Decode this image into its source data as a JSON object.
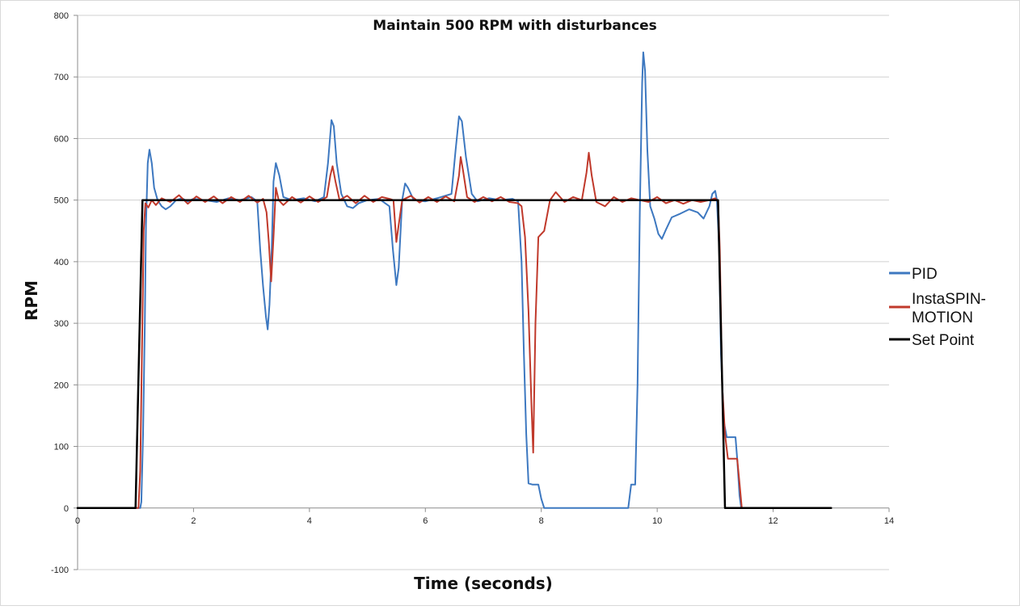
{
  "chart_data": {
    "type": "line",
    "title": "Maintain 500 RPM with disturbances",
    "xlabel": "Time (seconds)",
    "ylabel": "RPM",
    "xlim": [
      0,
      14
    ],
    "ylim": [
      -100,
      800
    ],
    "x_ticks": [
      "0",
      "2",
      "4",
      "6",
      "8",
      "10",
      "12",
      "14"
    ],
    "y_ticks": [
      "800",
      "700",
      "600",
      "500",
      "400",
      "300",
      "200",
      "100",
      "0",
      "-100"
    ],
    "grid": "horizontal",
    "legend_position": "right",
    "legend": [
      {
        "label": "PID",
        "color": "#3d78c0"
      },
      {
        "label_lines": [
          "InstaSPIN-",
          "MOTION"
        ],
        "color": "#c0392b"
      },
      {
        "label": "Set Point",
        "color": "#000000"
      }
    ],
    "series": [
      {
        "name": "PID",
        "color": "#3d78c0",
        "points": [
          [
            0,
            0
          ],
          [
            1.0,
            0
          ],
          [
            1.08,
            0
          ],
          [
            1.1,
            10
          ],
          [
            1.13,
            120
          ],
          [
            1.16,
            300
          ],
          [
            1.18,
            460
          ],
          [
            1.21,
            560
          ],
          [
            1.24,
            582
          ],
          [
            1.28,
            560
          ],
          [
            1.32,
            520
          ],
          [
            1.38,
            500
          ],
          [
            1.45,
            490
          ],
          [
            1.52,
            485
          ],
          [
            1.6,
            490
          ],
          [
            1.7,
            500
          ],
          [
            1.8,
            503
          ],
          [
            1.9,
            498
          ],
          [
            2.0,
            502
          ],
          [
            2.2,
            500
          ],
          [
            2.4,
            497
          ],
          [
            2.6,
            503
          ],
          [
            2.8,
            500
          ],
          [
            3.0,
            505
          ],
          [
            3.1,
            498
          ],
          [
            3.15,
            420
          ],
          [
            3.2,
            360
          ],
          [
            3.25,
            310
          ],
          [
            3.28,
            290
          ],
          [
            3.31,
            330
          ],
          [
            3.35,
            420
          ],
          [
            3.38,
            530
          ],
          [
            3.42,
            560
          ],
          [
            3.48,
            540
          ],
          [
            3.55,
            505
          ],
          [
            3.7,
            500
          ],
          [
            3.9,
            503
          ],
          [
            4.1,
            498
          ],
          [
            4.25,
            505
          ],
          [
            4.32,
            560
          ],
          [
            4.38,
            630
          ],
          [
            4.42,
            620
          ],
          [
            4.47,
            560
          ],
          [
            4.55,
            510
          ],
          [
            4.65,
            490
          ],
          [
            4.75,
            487
          ],
          [
            4.85,
            495
          ],
          [
            5.0,
            500
          ],
          [
            5.2,
            502
          ],
          [
            5.38,
            490
          ],
          [
            5.44,
            420
          ],
          [
            5.5,
            362
          ],
          [
            5.54,
            390
          ],
          [
            5.6,
            500
          ],
          [
            5.65,
            527
          ],
          [
            5.7,
            520
          ],
          [
            5.8,
            500
          ],
          [
            6.0,
            498
          ],
          [
            6.2,
            503
          ],
          [
            6.45,
            510
          ],
          [
            6.52,
            580
          ],
          [
            6.58,
            636
          ],
          [
            6.63,
            628
          ],
          [
            6.7,
            570
          ],
          [
            6.8,
            510
          ],
          [
            6.9,
            498
          ],
          [
            7.1,
            503
          ],
          [
            7.3,
            500
          ],
          [
            7.5,
            502
          ],
          [
            7.6,
            498
          ],
          [
            7.66,
            400
          ],
          [
            7.7,
            250
          ],
          [
            7.74,
            120
          ],
          [
            7.78,
            40
          ],
          [
            7.85,
            38
          ],
          [
            7.95,
            38
          ],
          [
            8.0,
            15
          ],
          [
            8.05,
            0
          ],
          [
            8.2,
            0
          ],
          [
            9.0,
            0
          ],
          [
            9.5,
            0
          ],
          [
            9.55,
            38
          ],
          [
            9.62,
            38
          ],
          [
            9.66,
            200
          ],
          [
            9.7,
            480
          ],
          [
            9.74,
            690
          ],
          [
            9.76,
            740
          ],
          [
            9.79,
            710
          ],
          [
            9.83,
            580
          ],
          [
            9.88,
            490
          ],
          [
            9.95,
            470
          ],
          [
            10.02,
            445
          ],
          [
            10.08,
            437
          ],
          [
            10.15,
            452
          ],
          [
            10.25,
            472
          ],
          [
            10.4,
            478
          ],
          [
            10.55,
            485
          ],
          [
            10.7,
            480
          ],
          [
            10.8,
            470
          ],
          [
            10.9,
            490
          ],
          [
            10.95,
            510
          ],
          [
            11.0,
            515
          ],
          [
            11.03,
            500
          ],
          [
            11.07,
            420
          ],
          [
            11.1,
            250
          ],
          [
            11.15,
            140
          ],
          [
            11.2,
            115
          ],
          [
            11.35,
            115
          ],
          [
            11.38,
            80
          ],
          [
            11.42,
            20
          ],
          [
            11.45,
            0
          ],
          [
            11.6,
            0
          ],
          [
            13,
            0
          ]
        ]
      },
      {
        "name": "InstaSPIN-MOTION",
        "color": "#c0392b",
        "points": [
          [
            0,
            0
          ],
          [
            1.0,
            0
          ],
          [
            1.05,
            0
          ],
          [
            1.08,
            60
          ],
          [
            1.11,
            250
          ],
          [
            1.14,
            450
          ],
          [
            1.17,
            495
          ],
          [
            1.22,
            488
          ],
          [
            1.28,
            500
          ],
          [
            1.35,
            492
          ],
          [
            1.45,
            503
          ],
          [
            1.6,
            497
          ],
          [
            1.75,
            508
          ],
          [
            1.9,
            494
          ],
          [
            2.05,
            506
          ],
          [
            2.2,
            497
          ],
          [
            2.35,
            506
          ],
          [
            2.5,
            495
          ],
          [
            2.65,
            505
          ],
          [
            2.8,
            497
          ],
          [
            2.95,
            507
          ],
          [
            3.1,
            496
          ],
          [
            3.2,
            502
          ],
          [
            3.26,
            480
          ],
          [
            3.3,
            430
          ],
          [
            3.34,
            368
          ],
          [
            3.38,
            440
          ],
          [
            3.42,
            520
          ],
          [
            3.47,
            500
          ],
          [
            3.55,
            492
          ],
          [
            3.7,
            505
          ],
          [
            3.85,
            496
          ],
          [
            4.0,
            506
          ],
          [
            4.15,
            497
          ],
          [
            4.3,
            505
          ],
          [
            4.36,
            540
          ],
          [
            4.4,
            555
          ],
          [
            4.45,
            530
          ],
          [
            4.52,
            500
          ],
          [
            4.65,
            507
          ],
          [
            4.8,
            495
          ],
          [
            4.95,
            507
          ],
          [
            5.1,
            497
          ],
          [
            5.25,
            505
          ],
          [
            5.38,
            502
          ],
          [
            5.45,
            500
          ],
          [
            5.5,
            432
          ],
          [
            5.54,
            460
          ],
          [
            5.6,
            500
          ],
          [
            5.75,
            507
          ],
          [
            5.9,
            496
          ],
          [
            6.05,
            505
          ],
          [
            6.2,
            497
          ],
          [
            6.35,
            506
          ],
          [
            6.5,
            498
          ],
          [
            6.58,
            540
          ],
          [
            6.61,
            570
          ],
          [
            6.65,
            548
          ],
          [
            6.72,
            505
          ],
          [
            6.85,
            497
          ],
          [
            7.0,
            505
          ],
          [
            7.15,
            498
          ],
          [
            7.3,
            505
          ],
          [
            7.45,
            497
          ],
          [
            7.6,
            495
          ],
          [
            7.66,
            490
          ],
          [
            7.72,
            440
          ],
          [
            7.78,
            320
          ],
          [
            7.83,
            170
          ],
          [
            7.86,
            90
          ],
          [
            7.9,
            300
          ],
          [
            7.95,
            440
          ],
          [
            8.05,
            450
          ],
          [
            8.15,
            500
          ],
          [
            8.25,
            513
          ],
          [
            8.4,
            497
          ],
          [
            8.55,
            505
          ],
          [
            8.7,
            500
          ],
          [
            8.78,
            545
          ],
          [
            8.82,
            577
          ],
          [
            8.87,
            540
          ],
          [
            8.95,
            497
          ],
          [
            9.1,
            490
          ],
          [
            9.25,
            505
          ],
          [
            9.4,
            497
          ],
          [
            9.55,
            503
          ],
          [
            9.7,
            500
          ],
          [
            9.85,
            497
          ],
          [
            10.0,
            505
          ],
          [
            10.15,
            495
          ],
          [
            10.3,
            500
          ],
          [
            10.45,
            494
          ],
          [
            10.6,
            500
          ],
          [
            10.75,
            497
          ],
          [
            10.9,
            500
          ],
          [
            11.0,
            503
          ],
          [
            11.05,
            498
          ],
          [
            11.08,
            420
          ],
          [
            11.12,
            200
          ],
          [
            11.17,
            120
          ],
          [
            11.22,
            80
          ],
          [
            11.38,
            80
          ],
          [
            11.42,
            40
          ],
          [
            11.46,
            0
          ],
          [
            11.6,
            0
          ],
          [
            13,
            0
          ]
        ]
      },
      {
        "name": "Set Point",
        "color": "#000000",
        "points": [
          [
            0,
            0
          ],
          [
            1.0,
            0
          ],
          [
            1.12,
            500
          ],
          [
            11.05,
            500
          ],
          [
            11.17,
            0
          ],
          [
            13,
            0
          ]
        ]
      }
    ]
  }
}
